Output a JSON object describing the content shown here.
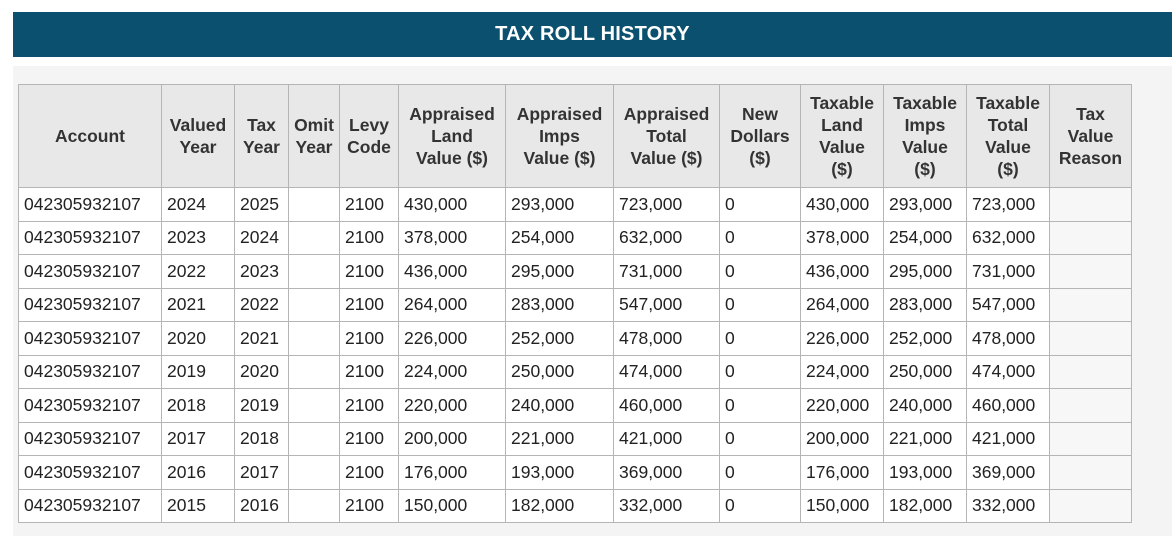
{
  "title": "TAX ROLL HISTORY",
  "columns": [
    [
      "Account"
    ],
    [
      "Valued",
      "Year"
    ],
    [
      "Tax",
      "Year"
    ],
    [
      "Omit",
      "Year"
    ],
    [
      "Levy",
      "Code"
    ],
    [
      "Appraised",
      "Land",
      "Value ($)"
    ],
    [
      "Appraised",
      "Imps",
      "Value ($)"
    ],
    [
      "Appraised",
      "Total",
      "Value ($)"
    ],
    [
      "New",
      "Dollars",
      "($)"
    ],
    [
      "Taxable",
      "Land",
      "Value",
      "($)"
    ],
    [
      "Taxable",
      "Imps",
      "Value",
      "($)"
    ],
    [
      "Taxable",
      "Total",
      "Value",
      "($)"
    ],
    [
      "Tax",
      "Value",
      "Reason"
    ]
  ],
  "rows": [
    [
      "042305932107",
      "2024",
      "2025",
      "",
      "2100",
      "430,000",
      "293,000",
      "723,000",
      "0",
      "430,000",
      "293,000",
      "723,000",
      ""
    ],
    [
      "042305932107",
      "2023",
      "2024",
      "",
      "2100",
      "378,000",
      "254,000",
      "632,000",
      "0",
      "378,000",
      "254,000",
      "632,000",
      ""
    ],
    [
      "042305932107",
      "2022",
      "2023",
      "",
      "2100",
      "436,000",
      "295,000",
      "731,000",
      "0",
      "436,000",
      "295,000",
      "731,000",
      ""
    ],
    [
      "042305932107",
      "2021",
      "2022",
      "",
      "2100",
      "264,000",
      "283,000",
      "547,000",
      "0",
      "264,000",
      "283,000",
      "547,000",
      ""
    ],
    [
      "042305932107",
      "2020",
      "2021",
      "",
      "2100",
      "226,000",
      "252,000",
      "478,000",
      "0",
      "226,000",
      "252,000",
      "478,000",
      ""
    ],
    [
      "042305932107",
      "2019",
      "2020",
      "",
      "2100",
      "224,000",
      "250,000",
      "474,000",
      "0",
      "224,000",
      "250,000",
      "474,000",
      ""
    ],
    [
      "042305932107",
      "2018",
      "2019",
      "",
      "2100",
      "220,000",
      "240,000",
      "460,000",
      "0",
      "220,000",
      "240,000",
      "460,000",
      ""
    ],
    [
      "042305932107",
      "2017",
      "2018",
      "",
      "2100",
      "200,000",
      "221,000",
      "421,000",
      "0",
      "200,000",
      "221,000",
      "421,000",
      ""
    ],
    [
      "042305932107",
      "2016",
      "2017",
      "",
      "2100",
      "176,000",
      "193,000",
      "369,000",
      "0",
      "176,000",
      "193,000",
      "369,000",
      ""
    ],
    [
      "042305932107",
      "2015",
      "2016",
      "",
      "2100",
      "150,000",
      "182,000",
      "332,000",
      "0",
      "150,000",
      "182,000",
      "332,000",
      ""
    ]
  ]
}
